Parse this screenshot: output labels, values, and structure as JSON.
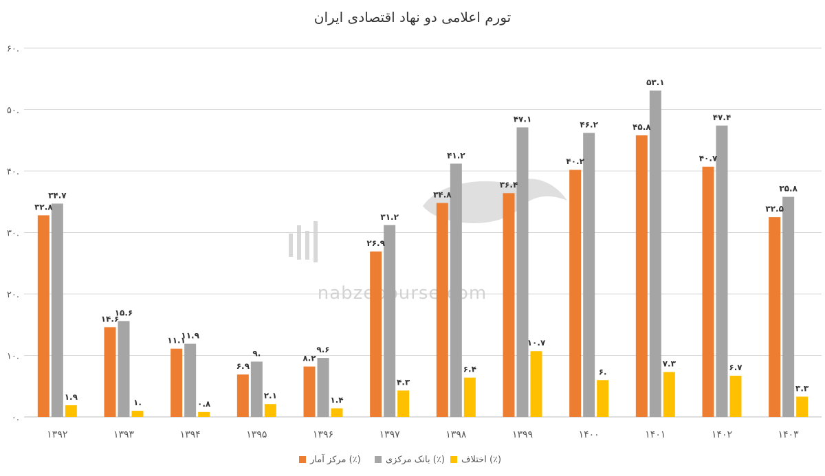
{
  "chart_data": {
    "type": "bar",
    "title": "تورم اعلامی دو نهاد اقتصادی ایران",
    "categories": [
      "۱۳۹۲",
      "۱۳۹۳",
      "۱۳۹۴",
      "۱۳۹۵",
      "۱۳۹۶",
      "۱۳۹۷",
      "۱۳۹۸",
      "۱۳۹۹",
      "۱۴۰۰",
      "۱۴۰۱",
      "۱۴۰۲",
      "۱۴۰۳"
    ],
    "series": [
      {
        "name": "مرکز آمار (٪)",
        "color": "#ED7D31",
        "values": [
          32.8,
          14.6,
          11.1,
          6.9,
          8.2,
          26.9,
          34.8,
          36.4,
          40.2,
          45.8,
          40.7,
          32.5
        ],
        "labels": [
          "۳۲.۸",
          "۱۴.۶",
          "۱۱.۱",
          "۶.۹",
          "۸.۲",
          "۲۶.۹",
          "۳۴.۸",
          "۳۶.۴",
          "۴۰.۲",
          "۴۵.۸",
          "۴۰.۷",
          "۳۲.۵"
        ]
      },
      {
        "name": "بانک مرکزی (٪)",
        "color": "#A5A5A5",
        "values": [
          34.7,
          15.6,
          11.9,
          9.0,
          9.6,
          31.2,
          41.2,
          47.1,
          46.2,
          53.1,
          47.4,
          35.8
        ],
        "labels": [
          "۳۴.۷",
          "۱۵.۶",
          "۱۱.۹",
          "۹.",
          "۹.۶",
          "۳۱.۲",
          "۴۱.۲",
          "۴۷.۱",
          "۴۶.۲",
          "۵۳.۱",
          "۴۷.۴",
          "۳۵.۸"
        ]
      },
      {
        "name": "اختلاف (٪)",
        "color": "#FFC000",
        "values": [
          1.9,
          1.0,
          0.8,
          2.1,
          1.4,
          4.3,
          6.4,
          10.7,
          6.0,
          7.3,
          6.7,
          3.3
        ],
        "labels": [
          "۱.۹",
          "۱.",
          "۰.۸",
          "۲.۱",
          "۱.۴",
          "۴.۳",
          "۶.۴",
          "۱۰.۷",
          "۶.",
          "۷.۳",
          "۶.۷",
          "۳.۳"
        ]
      }
    ],
    "ylim": [
      0,
      60
    ],
    "yticks": [
      0,
      10,
      20,
      30,
      40,
      50,
      60
    ],
    "ytick_labels": [
      "۰.",
      "۱۰.",
      "۲۰.",
      "۳۰.",
      "۴۰.",
      "۵۰.",
      "۶۰."
    ],
    "grid": true,
    "legend_position": "bottom-center",
    "gridline_color": "#D9D9D9"
  },
  "watermark": {
    "text": "nabzebourse.com"
  }
}
